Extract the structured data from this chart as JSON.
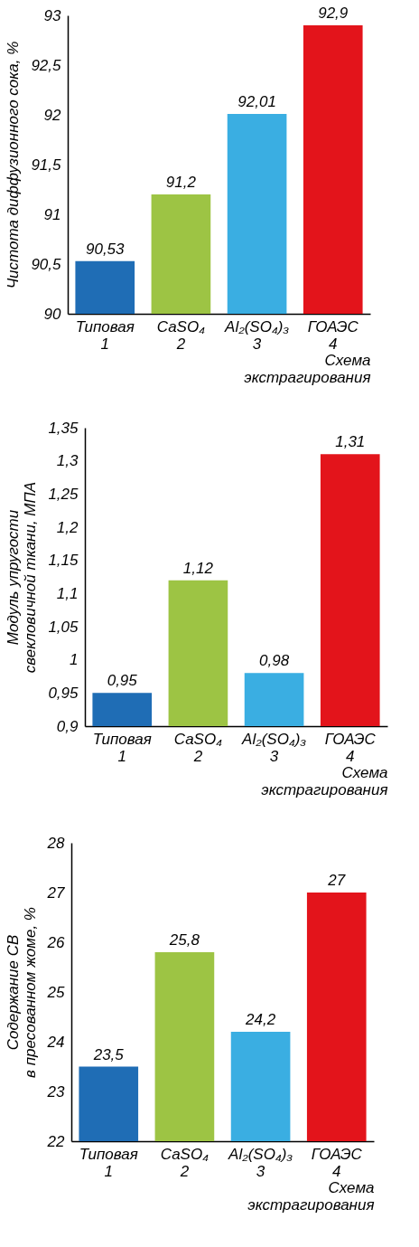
{
  "chart_data": [
    {
      "type": "bar",
      "ylabel": "Чистота диффузионного сока, %",
      "xlabel": "Схема\nэкстрагирования",
      "categories": [
        "Типовая\n1",
        "CaSO₄\n2",
        "Al₂(SO₄)₃\n3",
        "ГОАЭС\n4"
      ],
      "values": [
        90.53,
        91.2,
        92.01,
        92.9
      ],
      "value_labels": [
        "90,53",
        "91,2",
        "92,01",
        "92,9"
      ],
      "colors": [
        "#1f6db5",
        "#9dc444",
        "#3aaee2",
        "#e3141b"
      ],
      "ylim": [
        90,
        93
      ],
      "yticks": [
        90,
        {
          "value": 90.5,
          "label": "90,5"
        },
        91,
        {
          "value": 91.5,
          "label": "91,5"
        },
        92,
        {
          "value": 92.5,
          "label": "92,5"
        },
        93
      ]
    },
    {
      "type": "bar",
      "ylabel": "Модуль упругости\nсвекловичной ткани, МПА",
      "xlabel": "Схема\nэкстрагирования",
      "categories": [
        "Типовая\n1",
        "CaSO₄\n2",
        "Al₂(SO₄)₃\n3",
        "ГОАЭС\n4"
      ],
      "values": [
        0.95,
        1.12,
        0.98,
        1.31
      ],
      "value_labels": [
        "0,95",
        "1,12",
        "0,98",
        "1,31"
      ],
      "colors": [
        "#1f6db5",
        "#9dc444",
        "#3aaee2",
        "#e3141b"
      ],
      "ylim": [
        0.9,
        1.35
      ],
      "yticks": [
        {
          "value": 0.9,
          "label": "0,9"
        },
        {
          "value": 0.95,
          "label": "0,95"
        },
        1,
        {
          "value": 1.05,
          "label": "1,05"
        },
        {
          "value": 1.1,
          "label": "1,1"
        },
        {
          "value": 1.15,
          "label": "1,15"
        },
        {
          "value": 1.2,
          "label": "1,2"
        },
        {
          "value": 1.25,
          "label": "1,25"
        },
        {
          "value": 1.3,
          "label": "1,3"
        },
        {
          "value": 1.35,
          "label": "1,35"
        }
      ]
    },
    {
      "type": "bar",
      "ylabel": "Содержание СВ\nв пресованном жоме, %",
      "xlabel": "Схема\nэкстрагирования",
      "categories": [
        "Типовая\n1",
        "CaSO₄\n2",
        "Al₂(SO₄)₃\n3",
        "ГОАЭС\n4"
      ],
      "values": [
        23.5,
        25.8,
        24.2,
        27
      ],
      "value_labels": [
        "23,5",
        "25,8",
        "24,2",
        "27"
      ],
      "colors": [
        "#1f6db5",
        "#9dc444",
        "#3aaee2",
        "#e3141b"
      ],
      "ylim": [
        22,
        28
      ],
      "yticks": [
        22,
        23,
        24,
        25,
        26,
        27,
        28
      ]
    }
  ]
}
